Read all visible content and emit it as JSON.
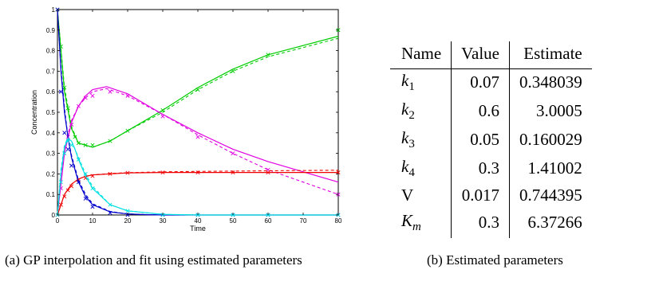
{
  "captions": {
    "a": "(a) GP interpolation and fit using estimated parameters",
    "b": "(b) Estimated parameters"
  },
  "table": {
    "headers": {
      "name": "Name",
      "value": "Value",
      "estimate": "Estimate"
    },
    "rows": [
      {
        "sym": "k",
        "sub": "1",
        "sub_italic": false,
        "value": "0.07",
        "estimate": "0.348039"
      },
      {
        "sym": "k",
        "sub": "2",
        "sub_italic": false,
        "value": "0.6",
        "estimate": "3.0005"
      },
      {
        "sym": "k",
        "sub": "3",
        "sub_italic": false,
        "value": "0.05",
        "estimate": "0.160029"
      },
      {
        "sym": "k",
        "sub": "4",
        "sub_italic": false,
        "value": "0.3",
        "estimate": "1.41002"
      },
      {
        "sym": "V",
        "sub": "",
        "sub_italic": false,
        "value": "0.017",
        "estimate": "0.744395",
        "upright": true
      },
      {
        "sym": "K",
        "sub": "m",
        "sub_italic": true,
        "value": "0.3",
        "estimate": "6.37266"
      }
    ]
  },
  "chart_data": {
    "type": "line",
    "title": "",
    "xlabel": "Time",
    "ylabel": "Concentration",
    "xlim": [
      0,
      80
    ],
    "ylim": [
      0,
      1
    ],
    "xticks": [
      0,
      10,
      20,
      30,
      40,
      50,
      60,
      70,
      80
    ],
    "yticks": [
      0,
      0.1,
      0.2,
      0.3,
      0.4,
      0.5,
      0.6,
      0.7,
      0.8,
      0.9,
      1
    ],
    "grid": false,
    "series": [
      {
        "color": "#00cc00",
        "x": [
          0,
          2,
          4,
          6,
          10,
          15,
          20,
          30,
          40,
          50,
          60,
          80
        ],
        "fit": [
          1.0,
          0.6,
          0.42,
          0.35,
          0.33,
          0.36,
          0.41,
          0.51,
          0.62,
          0.71,
          0.78,
          0.87
        ],
        "gp": [
          1.0,
          0.62,
          0.43,
          0.35,
          0.33,
          0.36,
          0.41,
          0.5,
          0.61,
          0.7,
          0.77,
          0.86
        ],
        "marker_x": [
          0,
          1,
          2,
          3,
          4,
          5,
          6,
          8,
          10,
          15,
          20,
          30,
          40,
          50,
          60,
          80
        ],
        "marker_y": [
          1.0,
          0.82,
          0.62,
          0.52,
          0.44,
          0.38,
          0.35,
          0.34,
          0.34,
          0.36,
          0.41,
          0.51,
          0.61,
          0.7,
          0.78,
          0.9
        ]
      },
      {
        "color": "#e000e0",
        "x": [
          0,
          2,
          4,
          6,
          8,
          10,
          14,
          20,
          30,
          40,
          50,
          60,
          70,
          80
        ],
        "fit": [
          0.0,
          0.3,
          0.45,
          0.53,
          0.58,
          0.61,
          0.625,
          0.59,
          0.49,
          0.4,
          0.32,
          0.26,
          0.21,
          0.16
        ],
        "gp": [
          0.0,
          0.32,
          0.46,
          0.53,
          0.57,
          0.6,
          0.615,
          0.58,
          0.49,
          0.39,
          0.3,
          0.22,
          0.16,
          0.1
        ],
        "marker_x": [
          0,
          1,
          2,
          3,
          4,
          6,
          8,
          10,
          15,
          20,
          30,
          40,
          50,
          60,
          80
        ],
        "marker_y": [
          0.0,
          0.13,
          0.3,
          0.38,
          0.44,
          0.53,
          0.57,
          0.58,
          0.6,
          0.58,
          0.48,
          0.38,
          0.3,
          0.22,
          0.1
        ]
      },
      {
        "color": "#ee0000",
        "x": [
          0,
          2,
          4,
          6,
          8,
          10,
          15,
          20,
          30,
          40,
          60,
          80
        ],
        "fit": [
          0.0,
          0.1,
          0.15,
          0.175,
          0.188,
          0.195,
          0.2,
          0.205,
          0.207,
          0.207,
          0.207,
          0.207
        ],
        "gp": [
          0.0,
          0.1,
          0.15,
          0.175,
          0.188,
          0.195,
          0.202,
          0.206,
          0.21,
          0.212,
          0.215,
          0.218
        ],
        "marker_x": [
          0,
          1,
          2,
          3,
          4,
          6,
          8,
          10,
          15,
          20,
          30,
          40,
          50,
          60,
          80
        ],
        "marker_y": [
          0.0,
          0.05,
          0.09,
          0.12,
          0.14,
          0.17,
          0.18,
          0.19,
          0.2,
          0.205,
          0.207,
          0.207,
          0.207,
          0.207,
          0.207
        ]
      },
      {
        "color": "#0000cc",
        "x": [
          0,
          1,
          2,
          3,
          4,
          6,
          8,
          10,
          15,
          20,
          25,
          30,
          40,
          80
        ],
        "fit": [
          1.0,
          0.7,
          0.5,
          0.38,
          0.28,
          0.16,
          0.09,
          0.05,
          0.015,
          0.005,
          0.002,
          0.0,
          0.0,
          0.0
        ],
        "gp": [
          1.0,
          0.72,
          0.52,
          0.38,
          0.29,
          0.17,
          0.1,
          0.055,
          0.017,
          0.005,
          0.002,
          0.0,
          0.0,
          0.0
        ],
        "marker_x": [
          0,
          1,
          2,
          3,
          4,
          6,
          8,
          10,
          15,
          20,
          30,
          40,
          50,
          60,
          80
        ],
        "marker_y": [
          1.0,
          0.6,
          0.4,
          0.32,
          0.24,
          0.16,
          0.08,
          0.04,
          0.01,
          0.0,
          0.0,
          0.0,
          0.0,
          0.0,
          0.0
        ]
      },
      {
        "color": "#00e0e0",
        "x": [
          0,
          1,
          2,
          3,
          4,
          5,
          6,
          8,
          10,
          15,
          20,
          30,
          40,
          80
        ],
        "fit": [
          0.0,
          0.2,
          0.33,
          0.37,
          0.36,
          0.32,
          0.27,
          0.19,
          0.13,
          0.05,
          0.02,
          0.003,
          0.0,
          0.0
        ],
        "gp": [
          0.0,
          0.22,
          0.34,
          0.375,
          0.36,
          0.32,
          0.28,
          0.2,
          0.14,
          0.05,
          0.02,
          0.003,
          0.0,
          0.0
        ],
        "marker_x": [
          0,
          1,
          2,
          3,
          4,
          6,
          8,
          10,
          15,
          20,
          30,
          40,
          50,
          60,
          80
        ],
        "marker_y": [
          0.0,
          0.16,
          0.3,
          0.36,
          0.34,
          0.27,
          0.2,
          0.13,
          0.05,
          0.02,
          0.0,
          0.0,
          0.0,
          0.0,
          0.0
        ]
      }
    ]
  }
}
